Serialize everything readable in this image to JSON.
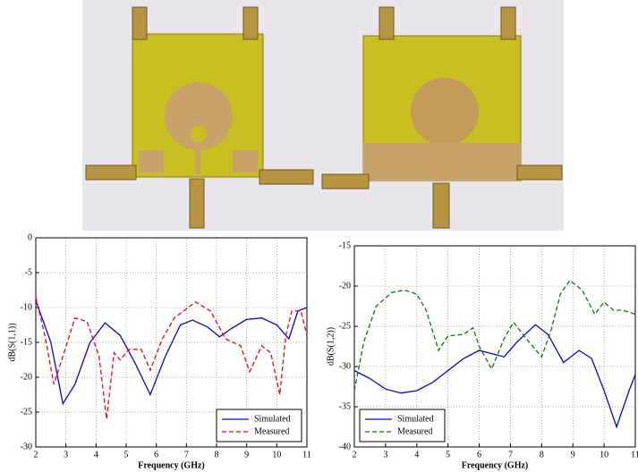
{
  "chart_data": [
    {
      "type": "line",
      "xlabel": "Frequency (GHz)",
      "ylabel": "dB(S(1,1))",
      "xlim": [
        2,
        11
      ],
      "xticks": [
        2,
        3,
        4,
        5,
        6,
        7,
        8,
        9,
        10,
        11
      ],
      "ylim": [
        -30,
        0
      ],
      "yticks": [
        0,
        -5,
        -10,
        -15,
        -20,
        -25,
        -30
      ],
      "grid": true,
      "legend": "lower right",
      "series": [
        {
          "name": "Simulated",
          "color": "#0000ff",
          "dash": false,
          "x": [
            2,
            2.5,
            2.9,
            3.3,
            3.8,
            4.3,
            4.8,
            5.3,
            5.8,
            6.3,
            6.8,
            7.2,
            7.7,
            8.1,
            8.5,
            9,
            9.5,
            10,
            10.4,
            10.7,
            11
          ],
          "values": [
            -9,
            -15,
            -23.8,
            -21,
            -15,
            -12.2,
            -14,
            -18,
            -22.5,
            -17,
            -12.5,
            -11.8,
            -12.8,
            -14.2,
            -13,
            -11.7,
            -11.5,
            -12.5,
            -14.5,
            -10.5,
            -10
          ]
        },
        {
          "name": "Measured",
          "color": "#ff0000",
          "dash": true,
          "x": [
            2,
            2.3,
            2.6,
            2.9,
            3.3,
            3.7,
            4.1,
            4.35,
            4.6,
            4.8,
            5.1,
            5.5,
            5.8,
            6.2,
            6.6,
            7.3,
            7.8,
            8.3,
            8.8,
            9.1,
            9.5,
            9.8,
            10.1,
            10.3,
            10.5,
            10.8,
            11
          ],
          "values": [
            -8.5,
            -14,
            -21,
            -17,
            -11.5,
            -12,
            -17,
            -26,
            -16.5,
            -17.5,
            -16,
            -16,
            -19,
            -14.5,
            -11.5,
            -9.2,
            -10.5,
            -14.5,
            -15.5,
            -19.2,
            -15.5,
            -16.5,
            -22.5,
            -14,
            -10.5,
            -10.5,
            -14
          ]
        }
      ]
    },
    {
      "type": "line",
      "xlabel": "Frequency (GHz)",
      "ylabel": "dB(S(1,2))",
      "xlim": [
        2,
        11
      ],
      "xticks": [
        2,
        3,
        4,
        5,
        6,
        7,
        8,
        9,
        10,
        11
      ],
      "ylim": [
        -40,
        -15
      ],
      "yticks": [
        -15,
        -20,
        -25,
        -30,
        -35,
        -40
      ],
      "grid": true,
      "legend": "lower left",
      "series": [
        {
          "name": "Simulated",
          "color": "#0000ff",
          "dash": false,
          "x": [
            2,
            2.5,
            3,
            3.5,
            4,
            4.5,
            5,
            5.5,
            6,
            6.5,
            6.8,
            7.2,
            7.8,
            8.2,
            8.7,
            9.2,
            9.6,
            10,
            10.4,
            10.8,
            11
          ],
          "values": [
            -30.5,
            -31.5,
            -32.8,
            -33.3,
            -33,
            -32,
            -30.5,
            -29,
            -28,
            -28.5,
            -28.8,
            -27,
            -24.8,
            -26,
            -29.5,
            -28,
            -29,
            -33,
            -37.5,
            -33,
            -31
          ]
        },
        {
          "name": "Measured",
          "color": "#008000",
          "dash": true,
          "x": [
            2,
            2.3,
            2.7,
            3.2,
            3.6,
            4,
            4.3,
            4.7,
            5,
            5.5,
            5.8,
            6,
            6.4,
            6.8,
            7.1,
            7.5,
            8,
            8.3,
            8.6,
            8.9,
            9.3,
            9.7,
            10,
            10.3,
            10.6,
            11
          ],
          "values": [
            -33,
            -27,
            -22.5,
            -20.8,
            -20.5,
            -21,
            -23,
            -28,
            -26.2,
            -26,
            -25.2,
            -27.5,
            -30.3,
            -26.5,
            -24.5,
            -26.5,
            -28.8,
            -25.5,
            -21,
            -19.3,
            -20.5,
            -23.5,
            -22,
            -23,
            -23,
            -23.5
          ]
        }
      ]
    }
  ]
}
